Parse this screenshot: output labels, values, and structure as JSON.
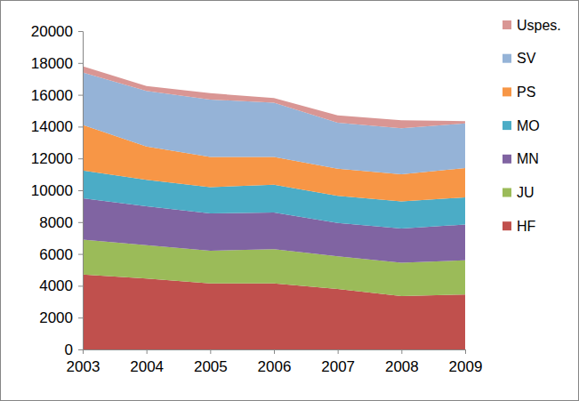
{
  "chart_data": {
    "type": "area",
    "stacked": true,
    "legend": "right",
    "grid": false,
    "x": [
      2003,
      2004,
      2005,
      2006,
      2007,
      2008,
      2009
    ],
    "xlim": [
      2003,
      2009
    ],
    "xticks": [
      2003,
      2004,
      2005,
      2006,
      2007,
      2008,
      2009
    ],
    "ylim": [
      0,
      20000
    ],
    "yticks": [
      0,
      2000,
      4000,
      6000,
      8000,
      10000,
      12000,
      14000,
      16000,
      18000,
      20000
    ],
    "series": [
      {
        "name": "HF",
        "color": "#c0504d",
        "values": [
          4700,
          4450,
          4150,
          4150,
          3800,
          3350,
          3450
        ]
      },
      {
        "name": "JU",
        "color": "#9bbb59",
        "values": [
          2200,
          2100,
          2050,
          2150,
          2050,
          2100,
          2150
        ]
      },
      {
        "name": "MN",
        "color": "#8064a2",
        "values": [
          2600,
          2450,
          2350,
          2300,
          2100,
          2150,
          2250
        ]
      },
      {
        "name": "MO",
        "color": "#4bacc6",
        "values": [
          1750,
          1650,
          1650,
          1750,
          1700,
          1700,
          1700
        ]
      },
      {
        "name": "PS",
        "color": "#f79646",
        "values": [
          2850,
          2100,
          1900,
          1750,
          1700,
          1700,
          1850
        ]
      },
      {
        "name": "SV",
        "color": "#95b3d7",
        "values": [
          3300,
          3500,
          3600,
          3400,
          2900,
          2900,
          2800
        ]
      },
      {
        "name": "Uspes.",
        "color": "#d99694",
        "values": [
          400,
          300,
          400,
          300,
          450,
          500,
          150
        ]
      }
    ]
  }
}
